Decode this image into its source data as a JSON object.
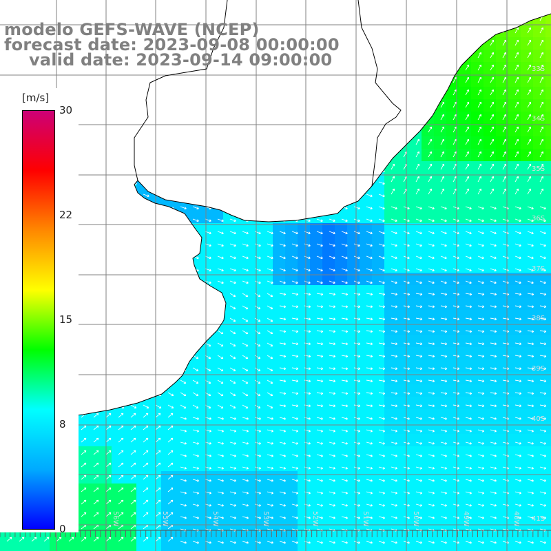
{
  "title": {
    "line1": "modelo GEFS-WAVE (NCEP)",
    "line2": "forecast date: 2023-09-08 00:00:00",
    "line3": "valid date: 2023-09-14 09:00:00"
  },
  "colorbar": {
    "unit": "[m/s]",
    "ticks": [
      "30",
      "22",
      "15",
      "8",
      "0"
    ],
    "min": 0,
    "max": 30,
    "colors": [
      "#0000ff",
      "#00aaff",
      "#00ffff",
      "#00ff00",
      "#ffff00",
      "#ff8800",
      "#ff0000",
      "#cc0077"
    ]
  },
  "map": {
    "latitude_labels": [
      "33S",
      "34S",
      "35S",
      "36S",
      "37S",
      "38S",
      "39S",
      "40S",
      "41S"
    ],
    "longitude_labels": [
      "58W",
      "57W",
      "56W",
      "55W",
      "54W",
      "53W",
      "52W",
      "51W",
      "50W",
      "49W",
      "48W"
    ],
    "land_color": "#ffffff",
    "grid_color": "#808080",
    "coast_color": "#000000",
    "arrow_color": "#ffffff",
    "variable": "wind speed and direction"
  }
}
